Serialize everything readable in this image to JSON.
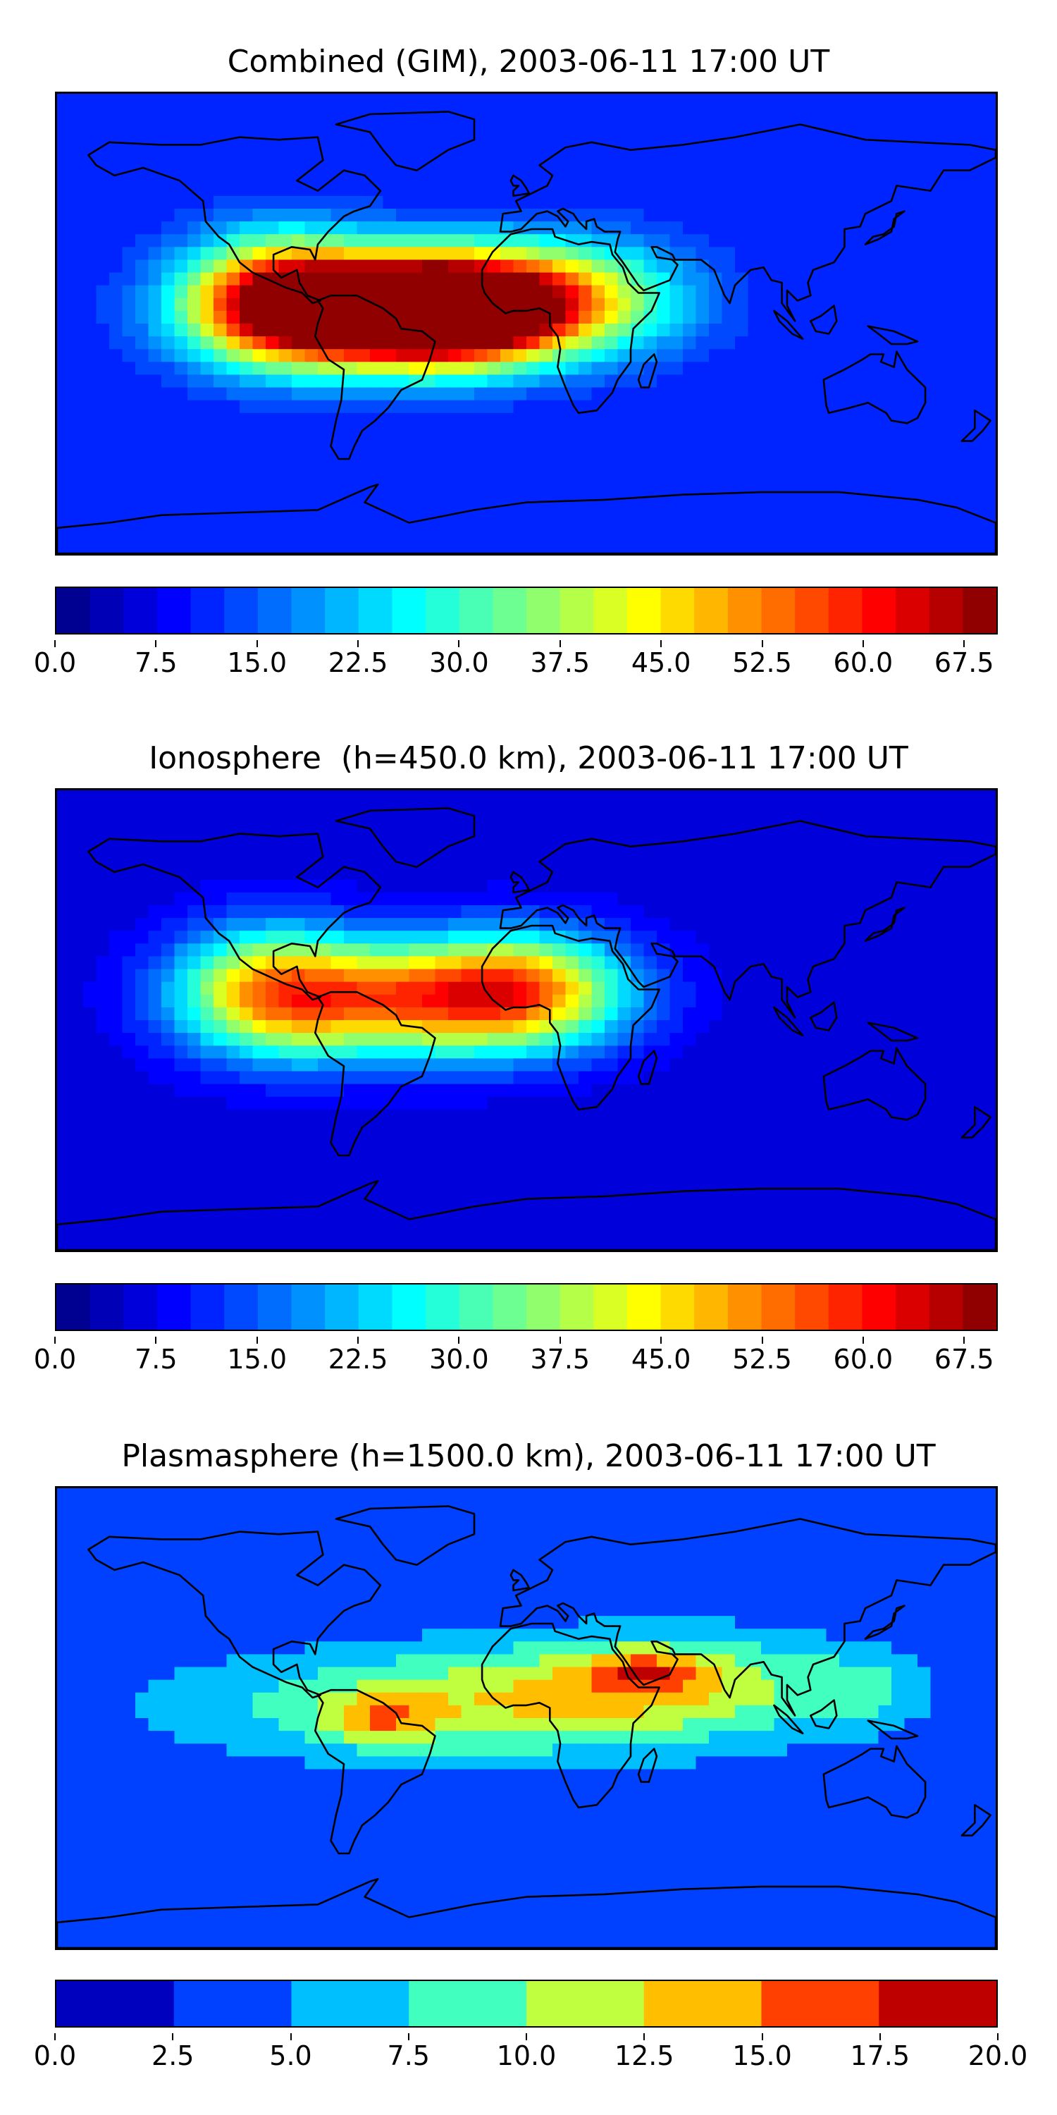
{
  "panels": [
    {
      "title": "Combined (GIM), 2003-06-11 17:00 UT",
      "colorbar": {
        "min": 0.0,
        "max": 70.0,
        "levels": 28,
        "tick_labels": [
          "0.0",
          "7.5",
          "15.0",
          "22.5",
          "30.0",
          "37.5",
          "45.0",
          "52.5",
          "60.0",
          "67.5"
        ],
        "tick_values": [
          0.0,
          7.5,
          15.0,
          22.5,
          30.0,
          37.5,
          45.0,
          52.5,
          60.0,
          67.5
        ]
      },
      "field": {
        "background": 10,
        "blobs": [
          {
            "lon": -60,
            "lat": 5,
            "value": 58,
            "slon": 55,
            "slat": 20
          },
          {
            "lon": -30,
            "lat": 5,
            "value": 60,
            "slon": 40,
            "slat": 20
          },
          {
            "lon": 15,
            "lat": 10,
            "value": 32,
            "slon": 45,
            "slat": 22
          },
          {
            "lon": -95,
            "lat": 10,
            "value": 40,
            "slon": 35,
            "slat": 25
          }
        ]
      }
    },
    {
      "title": "Ionosphere  (h=450.0 km), 2003-06-11 17:00 UT",
      "colorbar": {
        "min": 0.0,
        "max": 70.0,
        "levels": 28,
        "tick_labels": [
          "0.0",
          "7.5",
          "15.0",
          "22.5",
          "30.0",
          "37.5",
          "45.0",
          "52.5",
          "60.0",
          "67.5"
        ],
        "tick_values": [
          0.0,
          7.5,
          15.0,
          22.5,
          30.0,
          37.5,
          45.0,
          52.5,
          60.0,
          67.5
        ]
      },
      "field": {
        "background": 6,
        "blobs": [
          {
            "lon": -50,
            "lat": 8,
            "value": 42,
            "slon": 60,
            "slat": 22
          },
          {
            "lon": 0,
            "lat": 12,
            "value": 34,
            "slon": 40,
            "slat": 22
          },
          {
            "lon": -100,
            "lat": 12,
            "value": 30,
            "slon": 35,
            "slat": 25
          }
        ]
      }
    },
    {
      "title": "Plasmasphere (h=1500.0 km), 2003-06-11 17:00 UT",
      "colorbar": {
        "min": 0.0,
        "max": 20.0,
        "levels": 8,
        "tick_labels": [
          "0.0",
          "2.5",
          "5.0",
          "7.5",
          "10.0",
          "12.5",
          "15.0",
          "17.5",
          "20.0"
        ],
        "tick_values": [
          0.0,
          2.5,
          5.0,
          7.5,
          10.0,
          12.5,
          15.0,
          17.5,
          20.0
        ]
      },
      "field": {
        "background": 3,
        "blobs": [
          {
            "lon": -20,
            "lat": 5,
            "value": 8,
            "slon": 110,
            "slat": 22
          },
          {
            "lon": 60,
            "lat": 15,
            "value": 6,
            "slon": 70,
            "slat": 20
          },
          {
            "lon": -55,
            "lat": 0,
            "value": 6,
            "slon": 20,
            "slat": 10
          },
          {
            "lon": 45,
            "lat": 18,
            "value": 6,
            "slon": 22,
            "slat": 8
          },
          {
            "lon": 130,
            "lat": 10,
            "value": 3,
            "slon": 20,
            "slat": 15
          }
        ]
      }
    }
  ],
  "colormap": {
    "stops": [
      "#00007f",
      "#0000ff",
      "#007fff",
      "#00ffff",
      "#7fff7f",
      "#ffff00",
      "#ff7f00",
      "#ff0000",
      "#7f0000"
    ]
  },
  "coastline_color": "#000000"
}
